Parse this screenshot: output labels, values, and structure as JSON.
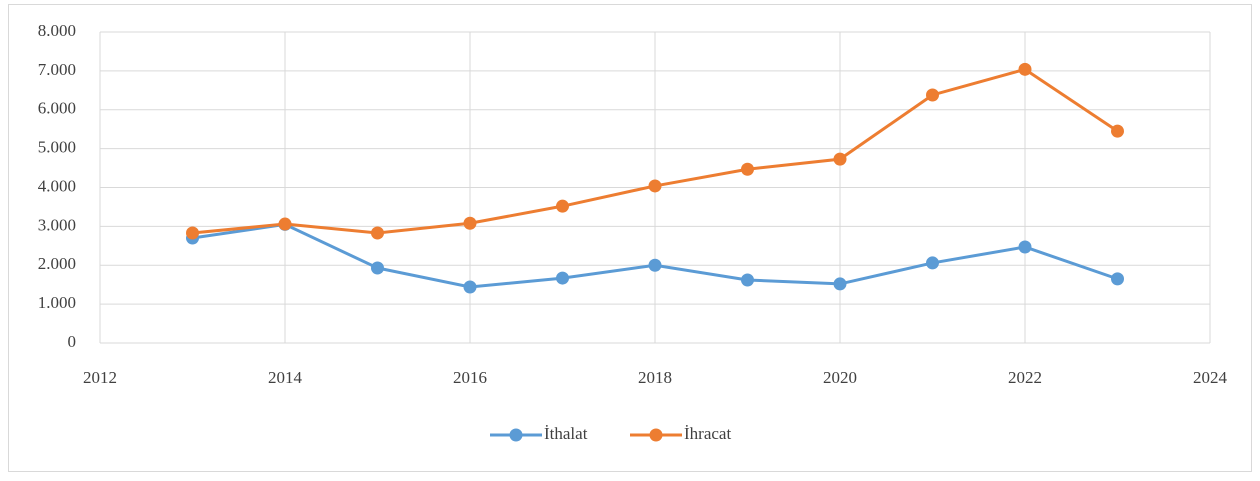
{
  "chart_data": {
    "type": "line",
    "x": [
      2013,
      2014,
      2015,
      2016,
      2017,
      2018,
      2019,
      2020,
      2021,
      2022,
      2023
    ],
    "series": [
      {
        "name": "İthalat",
        "color": "#5b9bd5",
        "values": [
          2700,
          3050,
          1930,
          1440,
          1670,
          2000,
          1620,
          1520,
          2060,
          2470,
          1650
        ]
      },
      {
        "name": "İhracat",
        "color": "#ed7d31",
        "values": [
          2830,
          3060,
          2830,
          3080,
          3520,
          4040,
          4470,
          4730,
          6380,
          7040,
          5450
        ]
      }
    ],
    "xlim": [
      2012,
      2024
    ],
    "xticks": [
      2012,
      2014,
      2016,
      2018,
      2020,
      2022,
      2024
    ],
    "ylim": [
      0,
      8000
    ],
    "yticks": [
      0,
      {
        "value": 1000,
        "label": "1.000"
      },
      {
        "value": 2000,
        "label": "2.000"
      },
      {
        "value": 3000,
        "label": "3.000"
      },
      {
        "value": 4000,
        "label": "4.000"
      },
      {
        "value": 5000,
        "label": "5.000"
      },
      {
        "value": 6000,
        "label": "6.000"
      },
      {
        "value": 7000,
        "label": "7.000"
      },
      {
        "value": 8000,
        "label": "8.000"
      }
    ],
    "grid": true,
    "legend": "bottom"
  }
}
